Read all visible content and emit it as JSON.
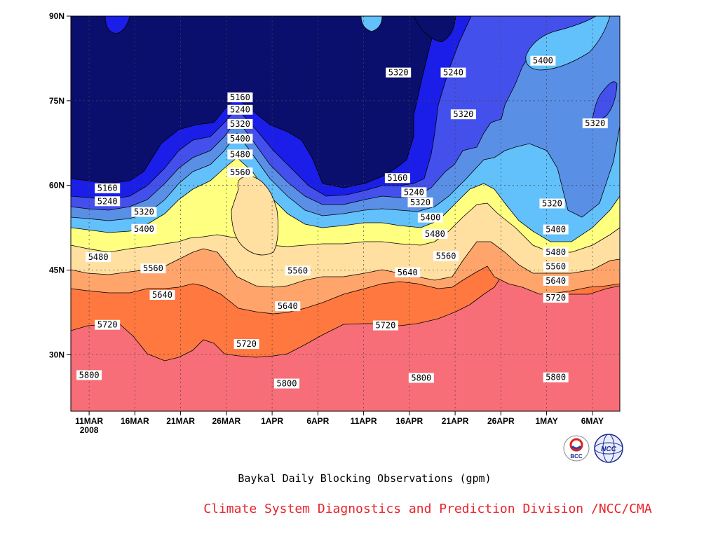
{
  "chart_data": {
    "type": "heatmap",
    "subtype": "filled-contour",
    "title": "Baykal Daily Blocking Observations (gpm)",
    "credit": "Climate System Diagnostics and Prediction Division /NCC/CMA",
    "credit_color": "#e8242c",
    "x_ticks": [
      "11MAR",
      "16MAR",
      "21MAR",
      "26MAR",
      "1APR",
      "6APR",
      "11APR",
      "16APR",
      "21APR",
      "26APR",
      "1MAY",
      "6MAY"
    ],
    "x_year_label": "2008",
    "y_ticks": [
      "30N",
      "45N",
      "60N",
      "75N",
      "90N"
    ],
    "y_tick_values": [
      30,
      45,
      60,
      75,
      90
    ],
    "xlim": [
      0,
      60
    ],
    "ylim": [
      20,
      90
    ],
    "grid": true,
    "contour_levels": [
      5160,
      5240,
      5320,
      5400,
      5480,
      5560,
      5640,
      5720,
      5800
    ],
    "fill_colors": [
      "#0a0f6e",
      "#1a1ee8",
      "#4450ec",
      "#5a8fe6",
      "#62c0fa",
      "#ffff80",
      "#ffe0a0",
      "#ffa56c",
      "#ff7840",
      "#f76e78"
    ],
    "contour_labels": [
      {
        "text": "5160",
        "x": 4,
        "y": 59.5
      },
      {
        "text": "5240",
        "x": 4,
        "y": 57.2
      },
      {
        "text": "5320",
        "x": 8,
        "y": 55.3
      },
      {
        "text": "5400",
        "x": 8,
        "y": 52.3
      },
      {
        "text": "5480",
        "x": 3,
        "y": 47.3
      },
      {
        "text": "5560",
        "x": 9,
        "y": 45.3
      },
      {
        "text": "5640",
        "x": 10,
        "y": 40.6
      },
      {
        "text": "5720",
        "x": 4,
        "y": 35.3
      },
      {
        "text": "5800",
        "x": 2,
        "y": 26.4
      },
      {
        "text": "5160",
        "x": 18.5,
        "y": 75.6
      },
      {
        "text": "5240",
        "x": 18.5,
        "y": 73.4
      },
      {
        "text": "5320",
        "x": 18.5,
        "y": 70.9
      },
      {
        "text": "5400",
        "x": 18.5,
        "y": 68.3
      },
      {
        "text": "5480",
        "x": 18.5,
        "y": 65.5
      },
      {
        "text": "5560",
        "x": 18.5,
        "y": 62.3
      },
      {
        "text": "5560",
        "x": 24.8,
        "y": 44.9
      },
      {
        "text": "5640",
        "x": 23.7,
        "y": 38.6
      },
      {
        "text": "5720",
        "x": 19.2,
        "y": 31.9
      },
      {
        "text": "5800",
        "x": 23.6,
        "y": 24.9
      },
      {
        "text": "5320",
        "x": 35.8,
        "y": 80.0
      },
      {
        "text": "5240",
        "x": 41.8,
        "y": 80.0
      },
      {
        "text": "5320",
        "x": 42.9,
        "y": 72.6
      },
      {
        "text": "5400",
        "x": 51.6,
        "y": 82.1
      },
      {
        "text": "5320",
        "x": 57.3,
        "y": 71.0
      },
      {
        "text": "5160",
        "x": 35.7,
        "y": 61.3
      },
      {
        "text": "5240",
        "x": 37.5,
        "y": 58.8
      },
      {
        "text": "5320",
        "x": 38.2,
        "y": 57.0
      },
      {
        "text": "5400",
        "x": 39.3,
        "y": 54.3
      },
      {
        "text": "5480",
        "x": 39.8,
        "y": 51.4
      },
      {
        "text": "5560",
        "x": 41.0,
        "y": 47.5
      },
      {
        "text": "5640",
        "x": 36.8,
        "y": 44.6
      },
      {
        "text": "5720",
        "x": 34.4,
        "y": 35.2
      },
      {
        "text": "5800",
        "x": 38.3,
        "y": 25.9
      },
      {
        "text": "5320",
        "x": 52.6,
        "y": 56.8
      },
      {
        "text": "5400",
        "x": 53.0,
        "y": 52.2
      },
      {
        "text": "5480",
        "x": 53.0,
        "y": 48.2
      },
      {
        "text": "5560",
        "x": 53.0,
        "y": 45.6
      },
      {
        "text": "5640",
        "x": 53.0,
        "y": 43.1
      },
      {
        "text": "5720",
        "x": 53.0,
        "y": 40.1
      },
      {
        "text": "5800",
        "x": 53.0,
        "y": 26.0
      }
    ]
  },
  "logos": [
    {
      "name": "bcc-logo-icon",
      "text": "BCC"
    },
    {
      "name": "ncc-logo-icon",
      "text": "NCC"
    }
  ]
}
